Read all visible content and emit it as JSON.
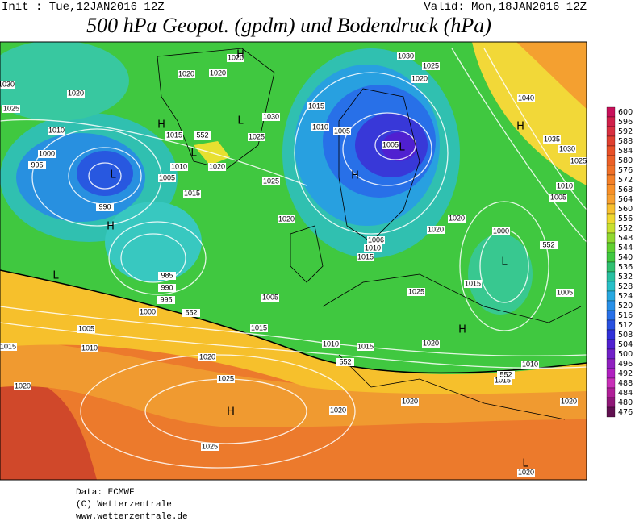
{
  "header": {
    "init": "Init : Tue,12JAN2016 12Z",
    "valid": "Valid: Mon,18JAN2016 12Z",
    "title": "500 hPa Geopot. (gpdm) und Bodendruck (hPa)"
  },
  "colorbar": {
    "levels": [
      600,
      596,
      592,
      588,
      584,
      580,
      576,
      572,
      568,
      564,
      560,
      556,
      552,
      548,
      544,
      540,
      536,
      532,
      528,
      524,
      520,
      516,
      512,
      508,
      504,
      500,
      496,
      492,
      488,
      484,
      480,
      476
    ],
    "colors": [
      "#c8105a",
      "#d0204a",
      "#d83040",
      "#e04030",
      "#e85028",
      "#ec6028",
      "#f07028",
      "#f48028",
      "#f89028",
      "#f8a030",
      "#f8c030",
      "#f0d830",
      "#c8e030",
      "#90d830",
      "#60d030",
      "#40c840",
      "#30c070",
      "#28c0a0",
      "#28c0c8",
      "#28a8e0",
      "#2890e8",
      "#2870e8",
      "#2850e0",
      "#3030d8",
      "#5020d0",
      "#7020c8",
      "#9020c0",
      "#b020c0",
      "#c830b8",
      "#b02098",
      "#901878",
      "#601050"
    ]
  },
  "map": {
    "labels": [
      "1020",
      "H",
      "1020",
      "1020",
      "1020",
      "1025",
      "1030",
      "1010",
      "1000",
      "995",
      "L",
      "990",
      "H",
      "1005",
      "1010",
      "1015",
      "1020",
      "1015",
      "L",
      "1030",
      "1025",
      "1025",
      "1020",
      "L",
      "H",
      "1015",
      "1010",
      "1005",
      "1005",
      "L",
      "H",
      "1030",
      "1025",
      "1020",
      "1040",
      "H",
      "1035",
      "1030",
      "1025",
      "1010",
      "1005",
      "1000",
      "L",
      "1005",
      "1020",
      "1020",
      "1006",
      "1010",
      "1015",
      "1015",
      "1025",
      "1005",
      "1015",
      "1010",
      "1015",
      "1020",
      "H",
      "1010",
      "1015",
      "1020",
      "1020",
      "1020",
      "1020",
      "1025",
      "H",
      "1025",
      "1020",
      "1015",
      "1010",
      "1005",
      "1000",
      "995",
      "990",
      "985",
      "L",
      "552",
      "552",
      "552",
      "552",
      "552",
      "L",
      "1020"
    ]
  },
  "footer": {
    "data": "Data: ECMWF",
    "copyright": "(C) Wetterzentrale",
    "url": "www.wetterzentrale.de"
  }
}
